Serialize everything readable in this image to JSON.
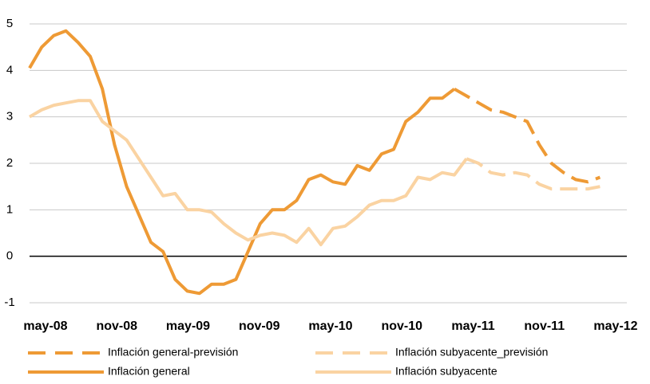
{
  "chart_data": {
    "type": "line",
    "categories": [
      "may-08",
      null,
      null,
      null,
      null,
      null,
      "nov-08",
      null,
      null,
      null,
      null,
      null,
      "may-09",
      null,
      null,
      null,
      null,
      null,
      "nov-09",
      null,
      null,
      null,
      null,
      null,
      "may-10",
      null,
      null,
      null,
      null,
      null,
      "nov-10",
      null,
      null,
      null,
      null,
      null,
      "may-11",
      null,
      null,
      null,
      null,
      null,
      "nov-11",
      null,
      null,
      null,
      null,
      null,
      "may-12"
    ],
    "series": [
      {
        "name": "Inflación general-previsión",
        "color": "#ee9a35",
        "dashed": true,
        "values": [
          null,
          null,
          null,
          null,
          null,
          null,
          null,
          null,
          null,
          null,
          null,
          null,
          null,
          null,
          null,
          null,
          null,
          null,
          null,
          null,
          null,
          null,
          null,
          null,
          null,
          null,
          null,
          null,
          null,
          null,
          null,
          null,
          null,
          null,
          null,
          3.6,
          3.45,
          3.3,
          3.15,
          3.1,
          3.0,
          2.9,
          2.4,
          2.0,
          1.8,
          1.65,
          1.6,
          1.7,
          null
        ]
      },
      {
        "name": "Inflación subyacente_previsión",
        "color": "#fad3a2",
        "dashed": true,
        "values": [
          null,
          null,
          null,
          null,
          null,
          null,
          null,
          null,
          null,
          null,
          null,
          null,
          null,
          null,
          null,
          null,
          null,
          null,
          null,
          null,
          null,
          null,
          null,
          null,
          null,
          null,
          null,
          null,
          null,
          null,
          null,
          null,
          null,
          null,
          null,
          null,
          2.1,
          2.0,
          1.8,
          1.75,
          1.8,
          1.75,
          1.55,
          1.45,
          1.45,
          1.45,
          1.45,
          1.5,
          null
        ]
      },
      {
        "name": "Inflación general",
        "color": "#ee9a35",
        "dashed": false,
        "values": [
          4.05,
          4.5,
          4.75,
          4.85,
          4.6,
          4.3,
          3.6,
          2.4,
          1.5,
          0.9,
          0.3,
          0.1,
          -0.5,
          -0.75,
          -0.8,
          -0.6,
          -0.6,
          -0.5,
          0.1,
          0.7,
          1.0,
          1.0,
          1.2,
          1.65,
          1.75,
          1.6,
          1.55,
          1.95,
          1.85,
          2.2,
          2.3,
          2.9,
          3.1,
          3.4,
          3.4,
          3.6,
          null,
          null,
          null,
          null,
          null,
          null,
          null,
          null,
          null,
          null,
          null,
          null,
          null
        ]
      },
      {
        "name": "Inflación subyacente",
        "color": "#fad3a2",
        "dashed": false,
        "values": [
          3.0,
          3.15,
          3.25,
          3.3,
          3.35,
          3.35,
          2.9,
          2.7,
          2.5,
          2.1,
          1.7,
          1.3,
          1.35,
          1.0,
          1.0,
          0.95,
          0.7,
          0.5,
          0.35,
          0.45,
          0.5,
          0.45,
          0.3,
          0.6,
          0.25,
          0.6,
          0.65,
          0.85,
          1.1,
          1.2,
          1.2,
          1.3,
          1.7,
          1.65,
          1.8,
          1.75,
          2.1,
          null,
          null,
          null,
          null,
          null,
          null,
          null,
          null,
          null,
          null,
          null,
          null
        ]
      }
    ],
    "ylim": [
      -1,
      5
    ],
    "yticks": [
      -1,
      0,
      1,
      2,
      3,
      4,
      5
    ],
    "grid": true
  }
}
